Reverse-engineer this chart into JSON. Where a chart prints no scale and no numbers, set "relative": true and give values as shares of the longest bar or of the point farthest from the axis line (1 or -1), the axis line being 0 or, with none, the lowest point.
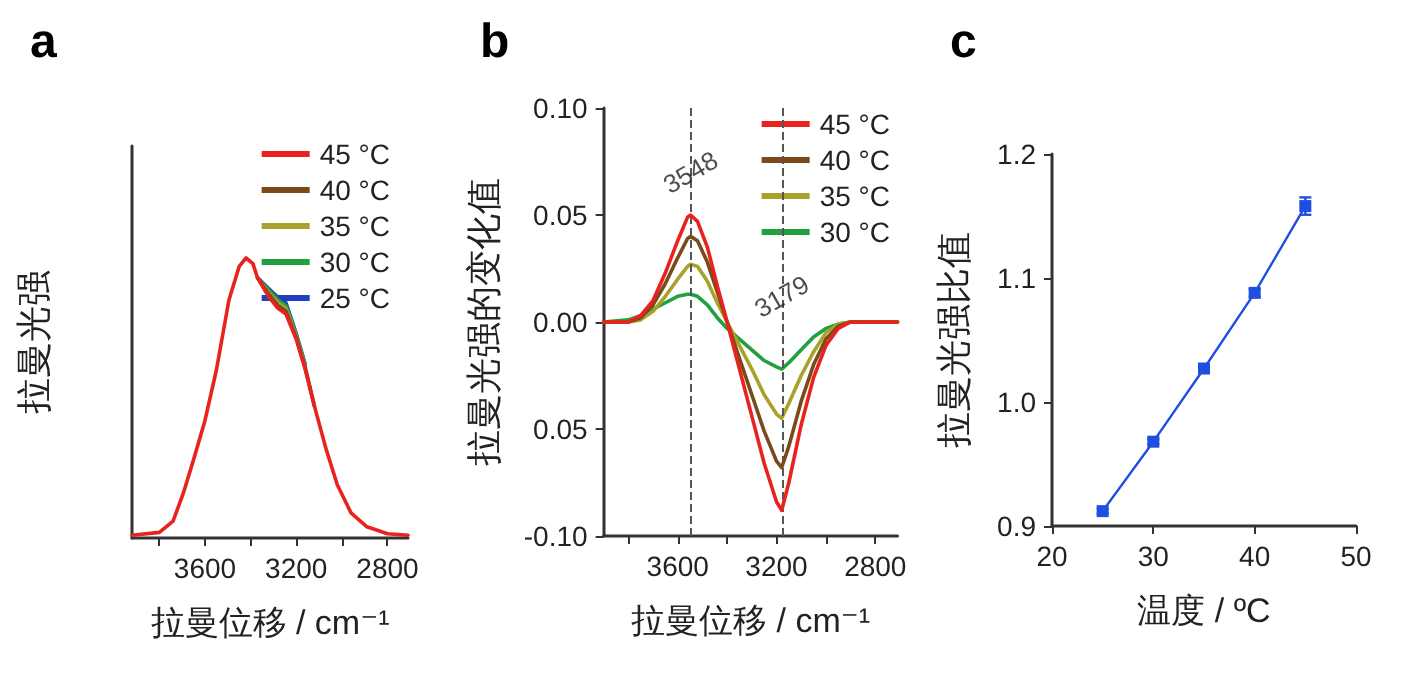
{
  "chart_data": [
    {
      "type": "line",
      "title": "a",
      "xlabel": "拉曼位移 / cm⁻¹",
      "ylabel": "拉曼光强",
      "relative": true,
      "tick_labels": "x",
      "legend": "top right",
      "marker": "none",
      "line_style": "solid",
      "xlim": [
        3920,
        2710
      ],
      "xticks": [
        {
          "value": 3800,
          "label": null
        },
        3600,
        {
          "value": 3400,
          "label": null
        },
        3200,
        {
          "value": 3000,
          "label": null
        },
        2800
      ],
      "x": [
        3920,
        3800,
        3740,
        3695,
        3650,
        3600,
        3550,
        3495,
        3450,
        3420,
        3390,
        3370,
        3320,
        3280,
        3245,
        3200,
        3160,
        3120,
        3070,
        3020,
        2960,
        2890,
        2800,
        2710
      ],
      "series": [
        {
          "name": "45 °C",
          "color": "#e8231f",
          "values": [
            0.01,
            0.02,
            0.06,
            0.16,
            0.28,
            0.42,
            0.6,
            0.85,
            0.97,
            1,
            0.98,
            0.93,
            0.86,
            0.82,
            0.8,
            0.71,
            0.6,
            0.47,
            0.32,
            0.19,
            0.09,
            0.04,
            0.015,
            0.01
          ]
        },
        {
          "name": "40 °C",
          "color": "#7a4a1a",
          "values": [
            null,
            null,
            null,
            null,
            null,
            null,
            null,
            null,
            null,
            null,
            null,
            0.93,
            0.87,
            0.83,
            0.81,
            0.715,
            0.605,
            0.47,
            null,
            null,
            null,
            null,
            null,
            null
          ]
        },
        {
          "name": "35 °C",
          "color": "#a8a22a",
          "values": [
            null,
            null,
            null,
            null,
            null,
            null,
            null,
            null,
            null,
            null,
            null,
            0.93,
            0.875,
            0.84,
            0.82,
            0.72,
            0.61,
            0.47,
            null,
            null,
            null,
            null,
            null,
            null
          ]
        },
        {
          "name": "30 °C",
          "color": "#22a040",
          "values": [
            null,
            null,
            null,
            null,
            null,
            null,
            null,
            null,
            null,
            null,
            null,
            0.93,
            0.885,
            0.85,
            0.83,
            0.725,
            0.615,
            null,
            null,
            null,
            null,
            null,
            null,
            null
          ]
        },
        {
          "name": "25 °C",
          "color": "#2040c0",
          "values": [
            null,
            null,
            null,
            null,
            null,
            null,
            null,
            null,
            null,
            null,
            null,
            0.93,
            0.89,
            0.86,
            0.84,
            0.73,
            0.62,
            null,
            null,
            null,
            null,
            null,
            null,
            null
          ]
        }
      ]
    },
    {
      "type": "line",
      "title": "b",
      "xlabel": "拉曼位移 / cm⁻¹",
      "ylabel": "拉曼光强的变化值",
      "legend": "top right",
      "marker": "none",
      "line_style": "solid",
      "xlim": [
        3900,
        2710
      ],
      "xticks": [
        {
          "value": 3800,
          "label": null
        },
        3600,
        {
          "value": 3400,
          "label": null
        },
        3200,
        {
          "value": 3000,
          "label": null
        },
        2800
      ],
      "ylim": [
        -0.1,
        0.1
      ],
      "yticks": [
        {
          "value": -0.1,
          "label": "-0.10"
        },
        {
          "value": -0.05,
          "label": "0.05"
        },
        {
          "value": 0,
          "label": "0.00"
        },
        {
          "value": 0.05,
          "label": "0.05"
        },
        {
          "value": 0.1,
          "label": "0.10"
        }
      ],
      "x": [
        3900,
        3800,
        3750,
        3700,
        3650,
        3600,
        3560,
        3548,
        3520,
        3480,
        3440,
        3400,
        3350,
        3300,
        3250,
        3200,
        3179,
        3150,
        3100,
        3050,
        3000,
        2950,
        2900,
        2800,
        2710
      ],
      "series": [
        {
          "name": "45 °C",
          "color": "#e8231f",
          "values": [
            0,
            0,
            0.003,
            0.01,
            0.023,
            0.038,
            0.049,
            0.05,
            0.047,
            0.035,
            0.017,
            0,
            -0.022,
            -0.044,
            -0.066,
            -0.084,
            -0.088,
            -0.075,
            -0.048,
            -0.026,
            -0.011,
            -0.003,
            0,
            0,
            0
          ]
        },
        {
          "name": "40 °C",
          "color": "#7a4a1a",
          "values": [
            0,
            0,
            0.002,
            0.008,
            0.018,
            0.03,
            0.039,
            0.04,
            0.038,
            0.028,
            0.014,
            0,
            -0.017,
            -0.034,
            -0.051,
            -0.065,
            -0.068,
            -0.058,
            -0.037,
            -0.02,
            -0.008,
            -0.002,
            0,
            0,
            0
          ]
        },
        {
          "name": "35 °C",
          "color": "#a8a22a",
          "values": [
            0,
            0,
            0.001,
            0.005,
            0.012,
            0.02,
            0.026,
            0.027,
            0.026,
            0.019,
            0.009,
            0,
            -0.011,
            -0.022,
            -0.034,
            -0.043,
            -0.045,
            -0.038,
            -0.025,
            -0.014,
            -0.005,
            -0.001,
            0,
            0,
            0
          ]
        },
        {
          "name": "30 °C",
          "color": "#22a040",
          "values": [
            0,
            0.001,
            0.003,
            0.006,
            0.009,
            0.012,
            0.013,
            0.013,
            0.012,
            0.008,
            0.002,
            -0.003,
            -0.008,
            -0.013,
            -0.018,
            -0.021,
            -0.022,
            -0.019,
            -0.013,
            -0.007,
            -0.003,
            -0.001,
            0,
            0,
            0
          ]
        }
      ],
      "ref_lines": [
        {
          "axis": "x",
          "value": 3548,
          "line_style": "dashed",
          "color": "#555555"
        },
        {
          "axis": "x",
          "value": 3179,
          "line_style": "dashed",
          "color": "#555555"
        }
      ],
      "annotations": [
        {
          "text": "3548",
          "x": 3548,
          "y": 0.07
        },
        {
          "text": "3179",
          "x": 3179,
          "y": 0.012
        }
      ]
    },
    {
      "type": "line",
      "title": "c",
      "xlabel": "温度 / ºC",
      "ylabel": "拉曼光强比值",
      "marker": "square",
      "line_style": "solid",
      "xlim": [
        20,
        50
      ],
      "xticks": [
        20,
        30,
        40,
        50
      ],
      "ylim": [
        0.9,
        1.2
      ],
      "yticks": [
        {
          "value": 0.9,
          "label": "0.9"
        },
        {
          "value": 1.0,
          "label": "1.0"
        },
        {
          "value": 1.1,
          "label": "1.1"
        },
        {
          "value": 1.2,
          "label": "1.2"
        }
      ],
      "x": [
        25,
        30,
        35,
        40,
        45
      ],
      "series": [
        {
          "color": "#1f4fe0",
          "values": [
            0.912,
            0.968,
            1.027,
            1.088,
            1.158
          ],
          "errors": [
            0.002,
            0.002,
            0.003,
            0.003,
            0.007
          ]
        }
      ]
    }
  ]
}
